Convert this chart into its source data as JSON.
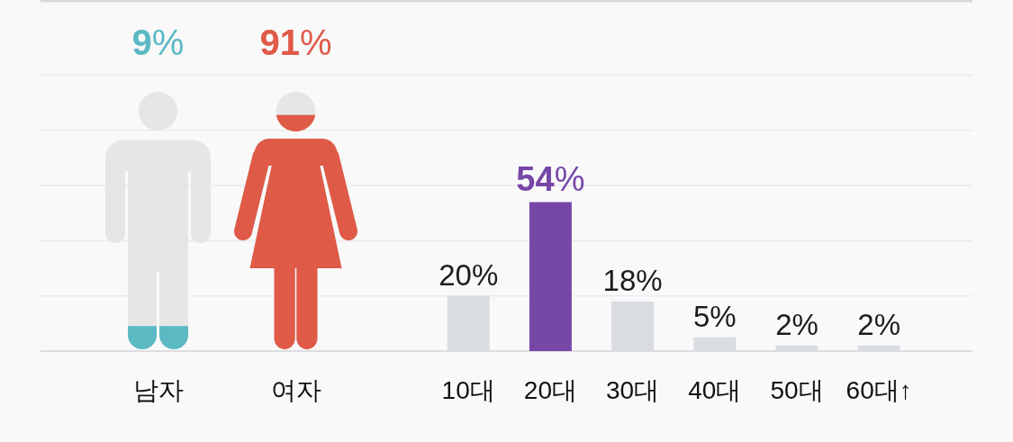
{
  "chart_data": [
    {
      "type": "other",
      "categories": [
        "남자",
        "여자"
      ],
      "values": [
        9,
        91
      ],
      "colors": [
        "#5bb9c4",
        "#df5a47"
      ],
      "value_labels": [
        "9%",
        "91%"
      ]
    },
    {
      "type": "bar",
      "categories": [
        "10대",
        "20대",
        "30대",
        "40대",
        "50대",
        "60대↑"
      ],
      "values": [
        20,
        54,
        18,
        5,
        2,
        2
      ],
      "colors": [
        "#d9dce1",
        "#7747a7",
        "#d9dce1",
        "#d9dce1",
        "#d9dce1",
        "#d9dce1"
      ],
      "value_labels": [
        "20%",
        "54%",
        "18%",
        "5%",
        "2%",
        "2%"
      ],
      "ylim": [
        0,
        100
      ],
      "yticks": [
        {
          "value": 0,
          "label": null
        },
        {
          "value": 20,
          "label": null
        },
        {
          "value": 40,
          "label": null
        },
        {
          "value": 60,
          "label": null
        },
        {
          "value": 80,
          "label": null
        },
        {
          "value": 100,
          "label": null
        }
      ],
      "grid": "y",
      "tick_labels": "x"
    }
  ]
}
